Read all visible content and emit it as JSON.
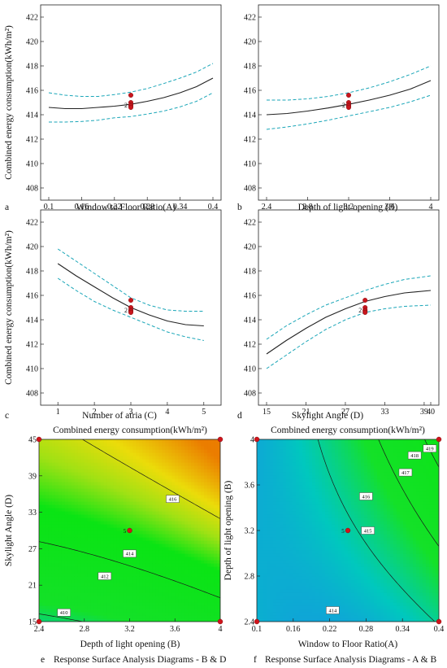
{
  "figure": {
    "ylabel_energy": "Combined energy consumption(kWh/m²)",
    "surface_title": "Combined energy consumption(kWh/m²)"
  },
  "chart_data": [
    {
      "type": "line",
      "panel_label": "a",
      "xlabel": "Window to Floor Ratio(A)",
      "ylabel": "Combined energy consumption(kWh/m²)",
      "xlim": [
        0.1,
        0.4
      ],
      "ylim": [
        407,
        423
      ],
      "xticks": [
        "0.1",
        "0.16",
        "0.22",
        "0.28",
        "0.34",
        "0.4"
      ],
      "yticks": [
        "408",
        "410",
        "412",
        "414",
        "416",
        "418",
        "420",
        "422"
      ],
      "x": [
        0.1,
        0.13,
        0.16,
        0.19,
        0.22,
        0.25,
        0.28,
        0.31,
        0.34,
        0.37,
        0.4
      ],
      "series": [
        {
          "role": "prediction",
          "values": [
            414.6,
            414.5,
            414.5,
            414.6,
            414.7,
            414.85,
            415.1,
            415.4,
            415.8,
            416.3,
            417.0
          ]
        },
        {
          "role": "upper_ci",
          "values": [
            415.8,
            415.6,
            415.5,
            415.5,
            415.65,
            415.85,
            416.15,
            416.55,
            417.0,
            417.5,
            418.2
          ]
        },
        {
          "role": "lower_ci",
          "values": [
            413.4,
            413.4,
            413.45,
            413.55,
            413.75,
            413.85,
            414.05,
            414.3,
            414.65,
            415.1,
            415.8
          ]
        }
      ],
      "design_points": {
        "x": [
          0.25,
          0.25,
          0.25,
          0.25,
          0.25
        ],
        "y": [
          415.6,
          415.0,
          414.8,
          414.7,
          414.6
        ]
      },
      "point_annotation": "2"
    },
    {
      "type": "line",
      "panel_label": "b",
      "xlabel": "Depth of light opening (B)",
      "ylabel": "",
      "xlim": [
        2.4,
        4.0
      ],
      "ylim": [
        407,
        423
      ],
      "xticks": [
        "2.4",
        "2.8",
        "3.2",
        "3.6",
        "4"
      ],
      "yticks": [
        "408",
        "410",
        "412",
        "414",
        "416",
        "418",
        "420",
        "422"
      ],
      "x": [
        2.4,
        2.6,
        2.8,
        3.0,
        3.2,
        3.4,
        3.6,
        3.8,
        4.0
      ],
      "series": [
        {
          "role": "prediction",
          "values": [
            414.0,
            414.1,
            414.3,
            414.55,
            414.85,
            415.2,
            415.6,
            416.1,
            416.8
          ]
        },
        {
          "role": "upper_ci",
          "values": [
            415.2,
            415.2,
            415.3,
            415.5,
            415.8,
            416.2,
            416.7,
            417.3,
            418.0
          ]
        },
        {
          "role": "lower_ci",
          "values": [
            412.8,
            413.0,
            413.25,
            413.55,
            413.9,
            414.25,
            414.6,
            415.05,
            415.6
          ]
        }
      ],
      "design_points": {
        "x": [
          3.2,
          3.2,
          3.2,
          3.2,
          3.2
        ],
        "y": [
          415.6,
          415.0,
          414.8,
          414.7,
          414.6
        ]
      },
      "point_annotation": "2"
    },
    {
      "type": "line",
      "panel_label": "c",
      "xlabel": "Number of atria (C)",
      "ylabel": "Combined energy consumption(kWh/m²)",
      "xlim": [
        0.75,
        5.25
      ],
      "ylim": [
        407,
        423
      ],
      "xticks": [
        "1",
        "2",
        "3",
        "4",
        "5"
      ],
      "yticks": [
        "408",
        "410",
        "412",
        "414",
        "416",
        "418",
        "420",
        "422"
      ],
      "x": [
        1,
        1.5,
        2,
        2.5,
        3,
        3.5,
        4,
        4.5,
        5
      ],
      "series": [
        {
          "role": "prediction",
          "values": [
            418.6,
            417.6,
            416.7,
            415.8,
            415.0,
            414.4,
            413.9,
            413.6,
            413.5
          ]
        },
        {
          "role": "upper_ci",
          "values": [
            419.8,
            418.8,
            417.8,
            416.8,
            415.8,
            415.2,
            414.8,
            414.7,
            414.7
          ]
        },
        {
          "role": "lower_ci",
          "values": [
            417.4,
            416.4,
            415.5,
            414.8,
            414.2,
            413.6,
            413.0,
            412.6,
            412.3
          ]
        }
      ],
      "design_points": {
        "x": [
          3,
          3,
          3,
          3,
          3
        ],
        "y": [
          415.6,
          415.0,
          414.8,
          414.7,
          414.6
        ]
      },
      "point_annotation": "2"
    },
    {
      "type": "line",
      "panel_label": "d",
      "xlabel": "Skylight Angle (D)",
      "ylabel": "",
      "xlim": [
        15,
        40
      ],
      "ylim": [
        407,
        423
      ],
      "xticks": [
        "15",
        "21",
        "27",
        "33",
        "39",
        "40"
      ],
      "yticks": [
        "408",
        "410",
        "412",
        "414",
        "416",
        "418",
        "420",
        "422"
      ],
      "x": [
        15,
        18,
        21,
        24,
        27,
        30,
        33,
        36,
        40
      ],
      "series": [
        {
          "role": "prediction",
          "values": [
            411.2,
            412.3,
            413.3,
            414.2,
            414.9,
            415.5,
            415.9,
            416.2,
            416.4
          ]
        },
        {
          "role": "upper_ci",
          "values": [
            412.4,
            413.5,
            414.4,
            415.2,
            415.8,
            416.4,
            416.9,
            417.3,
            417.6
          ]
        },
        {
          "role": "lower_ci",
          "values": [
            410.0,
            411.1,
            412.2,
            413.2,
            414.0,
            414.6,
            414.9,
            415.1,
            415.2
          ]
        }
      ],
      "design_points": {
        "x": [
          30,
          30,
          30,
          30,
          30
        ],
        "y": [
          415.6,
          415.0,
          414.8,
          414.7,
          414.6
        ]
      },
      "point_annotation": "2"
    },
    {
      "type": "heatmap",
      "panel_label": "e",
      "caption": "Response Surface Analysis Diagrams - B & D",
      "title": "Combined energy consumption(kWh/m²)",
      "xlabel": "Depth of light opening (B)",
      "ylabel": "Skylight Angle (D)",
      "xlim": [
        2.4,
        4.0
      ],
      "ylim": [
        15,
        45
      ],
      "xticks": [
        "2.4",
        "2.8",
        "3.2",
        "3.6",
        "4"
      ],
      "yticks": [
        "15",
        "21",
        "27",
        "33",
        "39",
        "45"
      ],
      "contour_levels": [
        410,
        412,
        414,
        416
      ],
      "design_points": {
        "x": [
          2.4,
          4.0,
          2.4,
          4.0,
          3.2
        ],
        "y": [
          15,
          15,
          45,
          45,
          30
        ]
      },
      "point_annotation": "5"
    },
    {
      "type": "heatmap",
      "panel_label": "f",
      "caption": "Response Surface Analysis Diagrams - A & B",
      "title": "Combined energy consumption(kWh/m²)",
      "xlabel": "Window to Floor Ratio(A)",
      "ylabel": "Depth of light opening (B)",
      "xlim": [
        0.1,
        0.4
      ],
      "ylim": [
        2.4,
        4.0
      ],
      "xticks": [
        "0.1",
        "0.16",
        "0.22",
        "0.28",
        "0.34",
        "0.4"
      ],
      "yticks": [
        "2.4",
        "2.8",
        "3.2",
        "3.6",
        "4"
      ],
      "contour_levels": [
        414,
        415,
        416,
        417,
        418,
        419
      ],
      "design_points": {
        "x": [
          0.1,
          0.4,
          0.1,
          0.4,
          0.25
        ],
        "y": [
          2.4,
          2.4,
          4.0,
          4.0,
          3.2
        ]
      },
      "point_annotation": "5"
    }
  ]
}
